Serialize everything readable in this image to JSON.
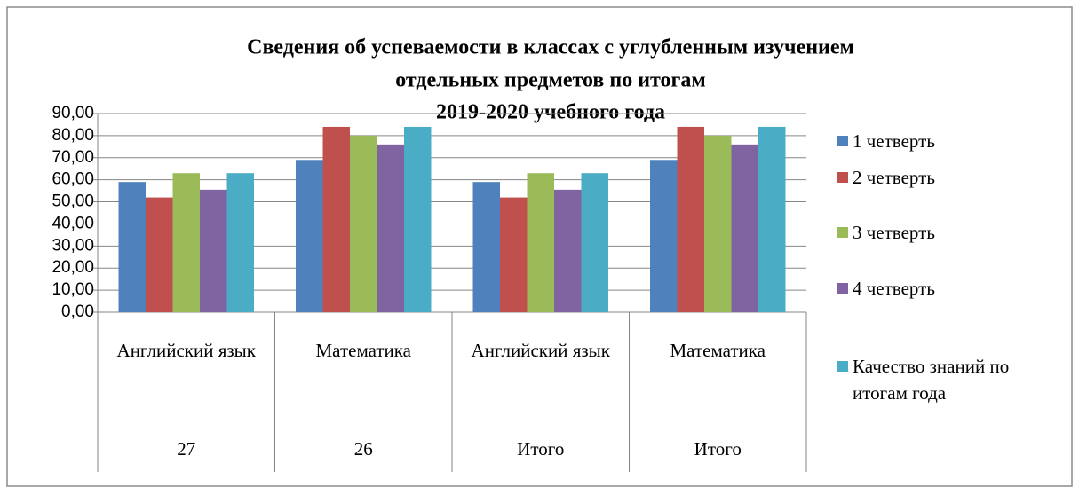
{
  "chart_data": {
    "type": "bar",
    "title": [
      "Сведения об успеваемости в классах с углубленным изучением",
      "отдельных предметов по итогам",
      "2019-2020 учебного года"
    ],
    "categories": [
      "Английский язык",
      "Математика",
      "Английский язык",
      "Математика"
    ],
    "category_groups": [
      "27",
      "26",
      "Итого",
      "Итого"
    ],
    "series": [
      {
        "name": "1 четверть",
        "color": "#4f81bd",
        "values": [
          59,
          69,
          59,
          69
        ]
      },
      {
        "name": "2 четверть",
        "color": "#c0504d",
        "values": [
          52,
          84,
          52,
          84
        ]
      },
      {
        "name": "3 четверть",
        "color": "#9bbb59",
        "values": [
          63,
          80,
          63,
          80
        ]
      },
      {
        "name": "4 четверть",
        "color": "#8064a2",
        "values": [
          55.5,
          76,
          55.5,
          76
        ]
      },
      {
        "name": "Качество знаний по итогам года",
        "color": "#4bacc6",
        "values": [
          63,
          84,
          63,
          84
        ]
      }
    ],
    "ylim": [
      0,
      90
    ],
    "yticks": [
      {
        "value": 0,
        "label": "0,00"
      },
      {
        "value": 10,
        "label": "10,00"
      },
      {
        "value": 20,
        "label": "20,00"
      },
      {
        "value": 30,
        "label": "30,00"
      },
      {
        "value": 40,
        "label": "40,00"
      },
      {
        "value": 50,
        "label": "50,00"
      },
      {
        "value": 60,
        "label": "60,00"
      },
      {
        "value": 70,
        "label": "70,00"
      },
      {
        "value": 80,
        "label": "80,00"
      },
      {
        "value": 90,
        "label": "90,00"
      }
    ],
    "grid": true,
    "legend": "right"
  }
}
